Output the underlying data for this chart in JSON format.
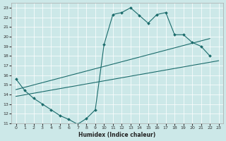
{
  "xlabel": "Humidex (Indice chaleur)",
  "xlim": [
    -0.5,
    23.5
  ],
  "ylim": [
    11,
    23.5
  ],
  "xticks": [
    0,
    1,
    2,
    3,
    4,
    5,
    6,
    7,
    8,
    9,
    10,
    11,
    12,
    13,
    14,
    15,
    16,
    17,
    18,
    19,
    20,
    21,
    22,
    23
  ],
  "yticks": [
    11,
    12,
    13,
    14,
    15,
    16,
    17,
    18,
    19,
    20,
    21,
    22,
    23
  ],
  "bg_color": "#cce8e8",
  "line_color": "#1a6b6b",
  "grid_color": "#ffffff",
  "line1_x": [
    0,
    1,
    2,
    3,
    4,
    5,
    6,
    7,
    8,
    9,
    10,
    11,
    12,
    13,
    14,
    15,
    16,
    17,
    18,
    19,
    20,
    21,
    22
  ],
  "line1_y": [
    15.6,
    14.4,
    13.6,
    13.0,
    12.4,
    11.8,
    11.4,
    10.9,
    11.5,
    12.4,
    19.2,
    22.3,
    22.5,
    23.0,
    22.2,
    21.4,
    22.3,
    22.5,
    20.2,
    20.2,
    19.4,
    19.0,
    18.0
  ],
  "line2_x": [
    0,
    22
  ],
  "line2_y": [
    14.5,
    19.8
  ],
  "line3_x": [
    0,
    23
  ],
  "line3_y": [
    13.8,
    17.5
  ],
  "marker_style": "D",
  "marker_size": 2.0,
  "linewidth": 0.8
}
